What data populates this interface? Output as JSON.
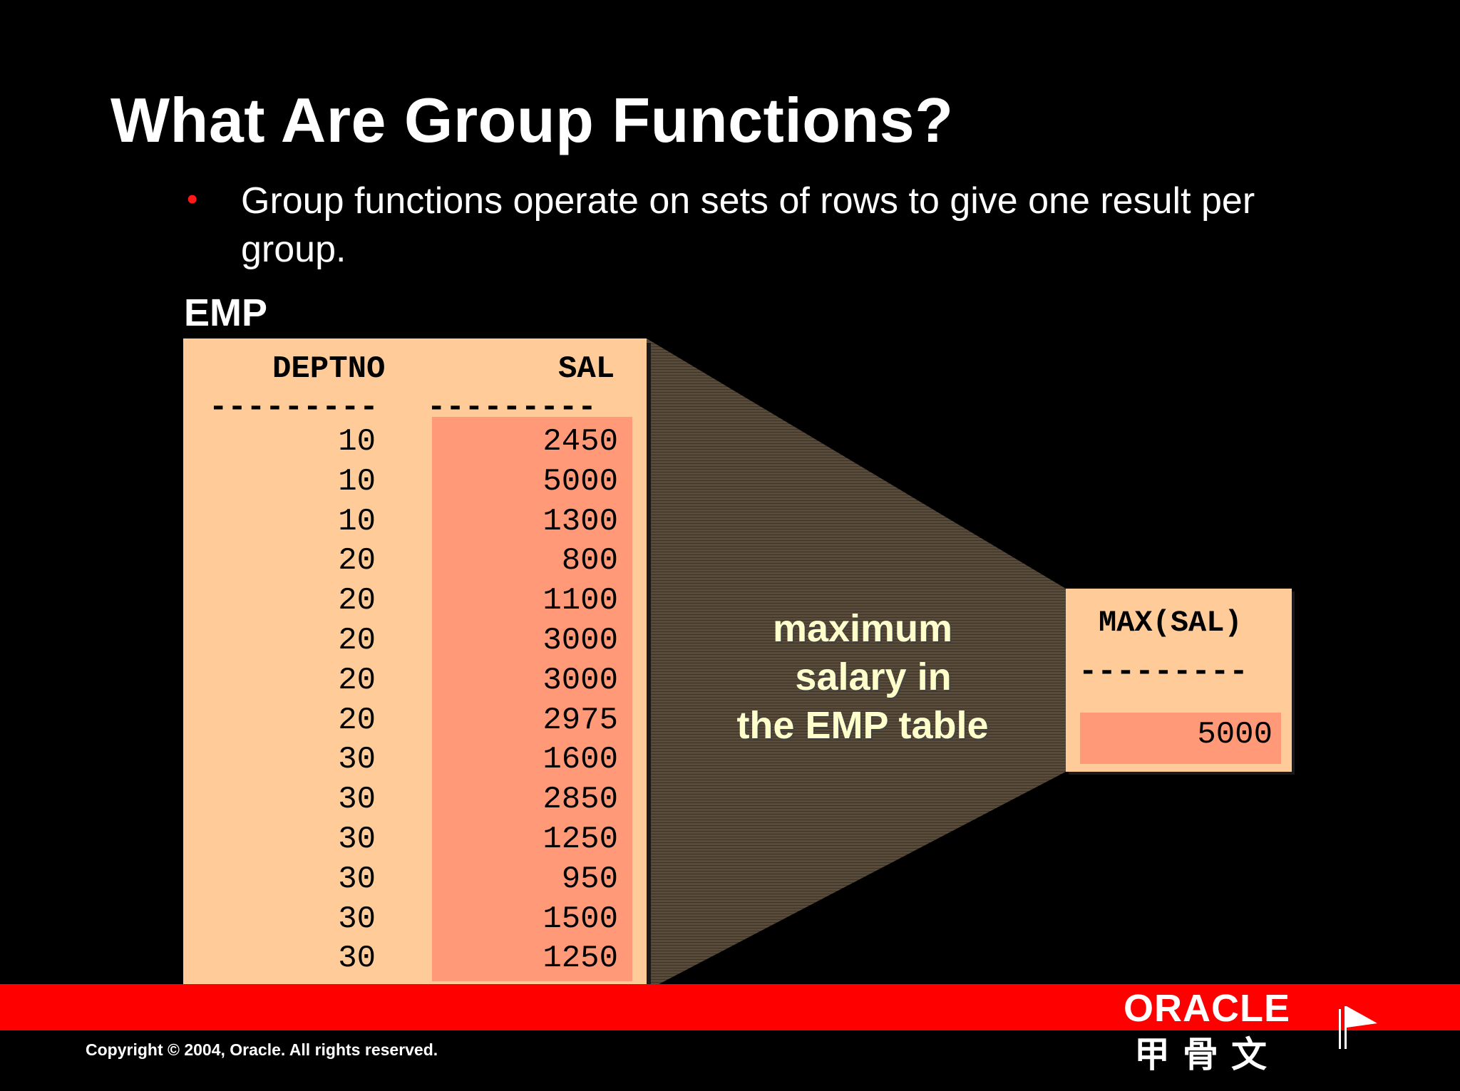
{
  "title": "What Are Group Functions?",
  "bullet": "Group functions operate on sets of rows to give one result per group.",
  "table_name": "EMP",
  "columns": {
    "deptno": "DEPTNO",
    "sal": "SAL"
  },
  "dashes": "---------",
  "rows": [
    {
      "deptno": "10",
      "sal": "2450"
    },
    {
      "deptno": "10",
      "sal": "5000"
    },
    {
      "deptno": "10",
      "sal": "1300"
    },
    {
      "deptno": "20",
      "sal": "800"
    },
    {
      "deptno": "20",
      "sal": "1100"
    },
    {
      "deptno": "20",
      "sal": "3000"
    },
    {
      "deptno": "20",
      "sal": "3000"
    },
    {
      "deptno": "20",
      "sal": "2975"
    },
    {
      "deptno": "30",
      "sal": "1600"
    },
    {
      "deptno": "30",
      "sal": "2850"
    },
    {
      "deptno": "30",
      "sal": "1250"
    },
    {
      "deptno": "30",
      "sal": "950"
    },
    {
      "deptno": "30",
      "sal": "1500"
    },
    {
      "deptno": "30",
      "sal": "1250"
    }
  ],
  "caption": {
    "line1": "maximum",
    "line2": "salary in",
    "line3": "the EMP table"
  },
  "result": {
    "header": "MAX(SAL)",
    "value": "5000"
  },
  "footer": {
    "copyright": "Copyright © 2004, Oracle.  All rights reserved.",
    "logo": "ORACLE",
    "logo_sub": "甲骨文"
  },
  "colors": {
    "background": "#000000",
    "table": "#ffcc99",
    "highlight": "#ff9977",
    "band": "#ff0000",
    "bullet": "#ff1a1a"
  }
}
